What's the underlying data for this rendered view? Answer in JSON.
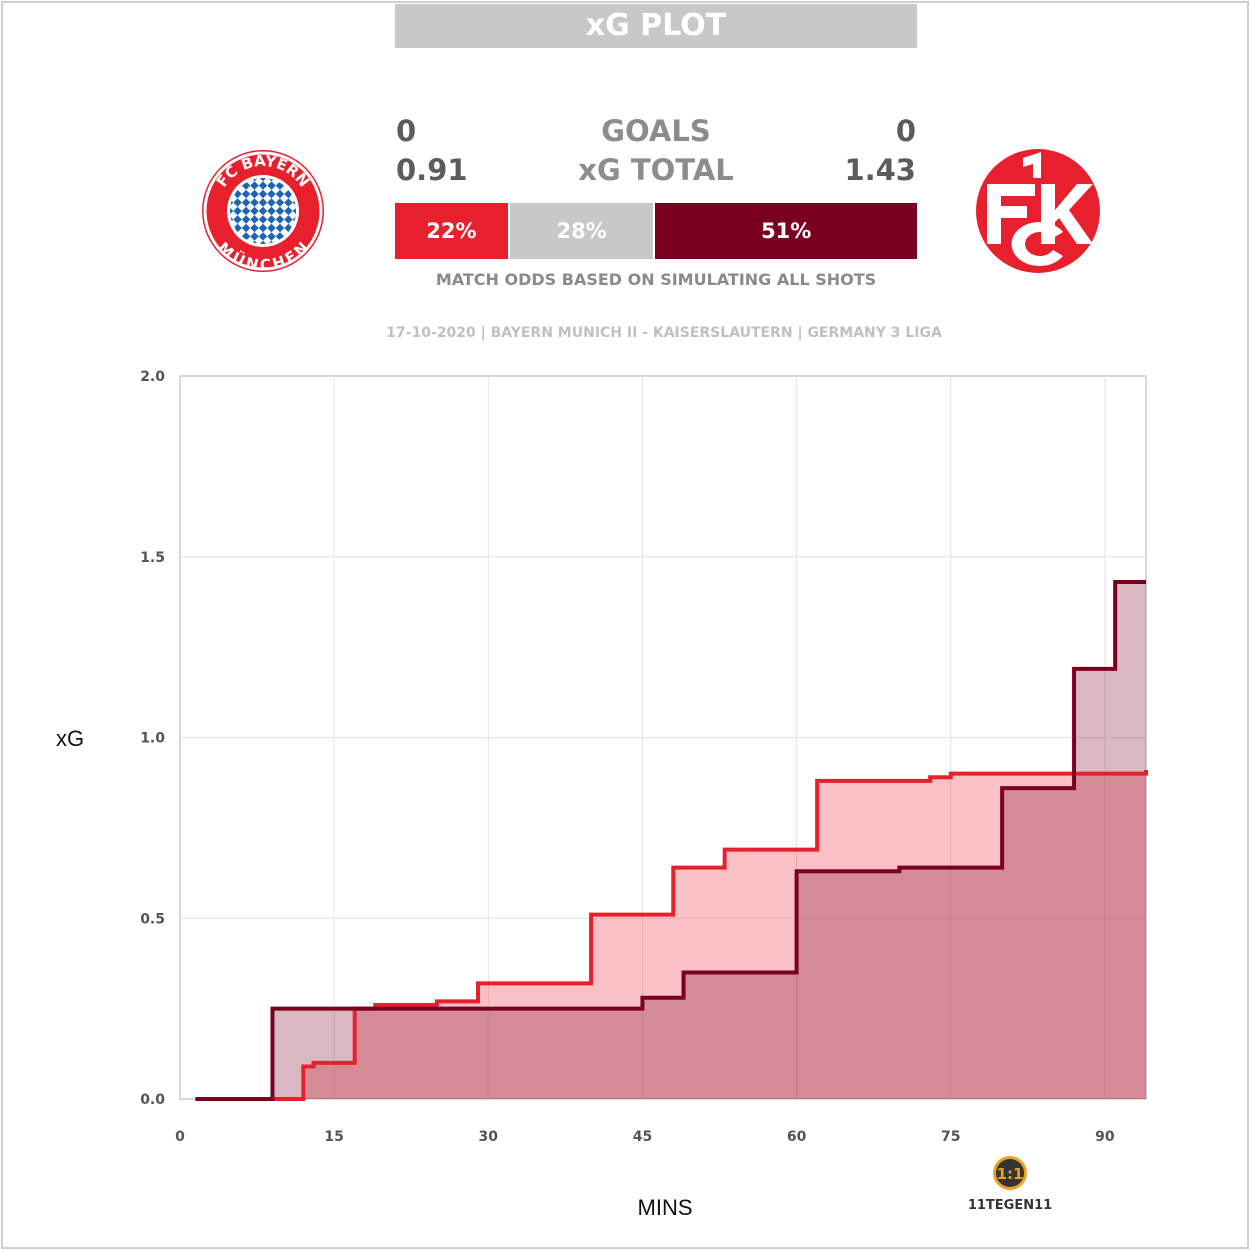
{
  "header": {
    "title": "xG PLOT"
  },
  "teams": {
    "home": {
      "name": "Bayern Munich II",
      "goals": "0",
      "xg_total": "0.91",
      "win_pct": "22%",
      "win_value": 22,
      "color": "#e8202e",
      "badge_text_top": "FC BAYERN",
      "badge_text_bottom": "MÜNCHEN"
    },
    "away": {
      "name": "Kaiserslautern",
      "goals": "0",
      "xg_total": "1.43",
      "win_pct": "51%",
      "win_value": 51,
      "color": "#7a0020",
      "badge_text": "1FCK"
    },
    "draw": {
      "pct": "28%",
      "value": 28,
      "color": "#c8c8c8"
    }
  },
  "labels": {
    "goals": "GOALS",
    "xg_total": "xG TOTAL",
    "odds_caption": "MATCH ODDS BASED ON SIMULATING ALL SHOTS",
    "match_info": "17-10-2020 | BAYERN MUNICH II - KAISERSLAUTERN | GERMANY 3 LIGA",
    "brand": "11TEGEN11"
  },
  "chart_data": {
    "type": "line",
    "step": true,
    "xlabel": "MINS",
    "ylabel": "xG",
    "xlim": [
      0,
      94
    ],
    "ylim": [
      0,
      2
    ],
    "x_ticks": [
      0,
      15,
      30,
      45,
      60,
      75,
      90
    ],
    "y_ticks": [
      "0.0",
      "0.5",
      "1.0",
      "1.5",
      "2.0"
    ],
    "grid": true,
    "series": [
      {
        "name": "Bayern Munich II",
        "color": "#e8202e",
        "fill": "#f6c0c6",
        "points": [
          [
            1.5,
            0
          ],
          [
            12,
            0.09
          ],
          [
            13,
            0.1
          ],
          [
            17,
            0.25
          ],
          [
            19,
            0.26
          ],
          [
            25,
            0.27
          ],
          [
            29,
            0.32
          ],
          [
            40,
            0.51
          ],
          [
            48,
            0.64
          ],
          [
            53,
            0.69
          ],
          [
            62,
            0.88
          ],
          [
            73,
            0.89
          ],
          [
            75,
            0.9
          ],
          [
            94,
            0.91
          ]
        ]
      },
      {
        "name": "Kaiserslautern",
        "color": "#7a0020",
        "fill": "#ddc0c8",
        "points": [
          [
            1.5,
            0
          ],
          [
            9,
            0.25
          ],
          [
            45,
            0.28
          ],
          [
            49,
            0.35
          ],
          [
            60,
            0.63
          ],
          [
            70,
            0.64
          ],
          [
            80,
            0.86
          ],
          [
            87,
            1.19
          ],
          [
            91,
            1.43
          ],
          [
            94,
            1.43
          ]
        ]
      }
    ]
  }
}
